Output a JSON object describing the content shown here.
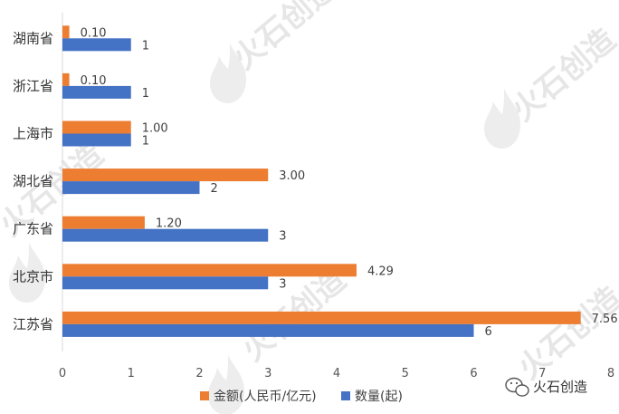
{
  "chart_data": {
    "type": "bar",
    "orientation": "horizontal",
    "categories": [
      "湖南省",
      "浙江省",
      "上海市",
      "湖北省",
      "广东省",
      "北京市",
      "江苏省"
    ],
    "series": [
      {
        "name": "金额(人民币/亿元)",
        "color": "#ED7D31",
        "values": [
          0.1,
          0.1,
          1.0,
          3.0,
          1.2,
          4.29,
          7.56
        ],
        "labels": [
          "0.10",
          "0.10",
          "1.00",
          "3.00",
          "1.20",
          "4.29",
          "7.56"
        ]
      },
      {
        "name": "数量(起)",
        "color": "#4472C4",
        "values": [
          1,
          1,
          1,
          2,
          3,
          3,
          6
        ],
        "labels": [
          "1",
          "1",
          "1",
          "2",
          "3",
          "3",
          "6"
        ]
      }
    ],
    "xlim": [
      0,
      8
    ],
    "xticks": [
      "0",
      "1",
      "2",
      "3",
      "4",
      "5",
      "6",
      "7",
      "8"
    ],
    "grid": false,
    "legend_position": "bottom-center",
    "title": "",
    "xlabel": "",
    "ylabel": ""
  },
  "watermark": {
    "text": "火石创造",
    "icon": "flame-logo-icon"
  },
  "footer": {
    "wechat_icon": "wechat-icon",
    "wechat_text": "火石创造"
  }
}
